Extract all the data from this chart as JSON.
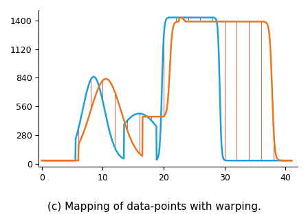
{
  "caption": "(c) Mapping of data-points with warping.",
  "xlim": [
    -0.5,
    42
  ],
  "ylim": [
    -30,
    1500
  ],
  "yticks": [
    0,
    280,
    560,
    840,
    1120,
    1400
  ],
  "xticks": [
    0,
    10,
    20,
    30,
    40
  ],
  "blue_color": "#1f9fd4",
  "orange_color": "#e87722",
  "warp_color": "#c0392b",
  "caption_fontsize": 11,
  "tick_fontsize": 9
}
